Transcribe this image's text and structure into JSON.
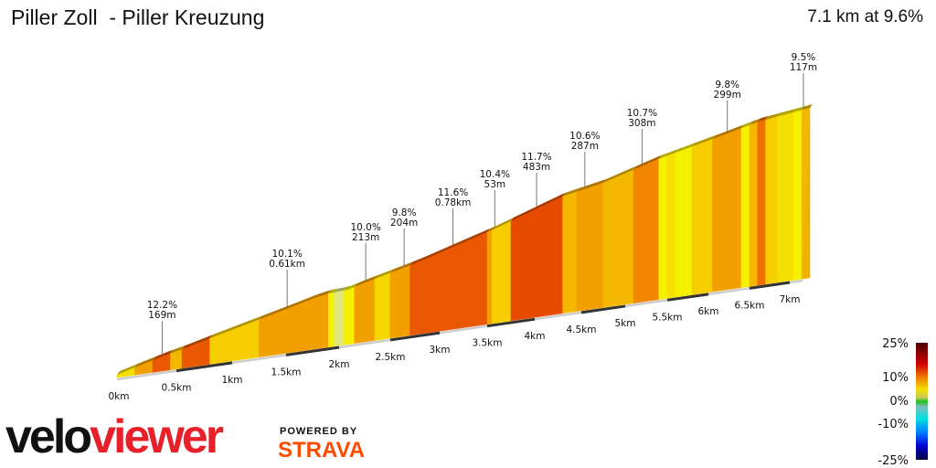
{
  "header": {
    "title": "Piller Zoll  - Piller Kreuzung",
    "summary": "7.1 km at 9.6%"
  },
  "branding": {
    "logo_part1": "velo",
    "logo_part2": "viewer",
    "powered_by": "POWERED BY",
    "strava": "STRAVA"
  },
  "chart_data": {
    "type": "area",
    "title": "Piller Zoll  - Piller Kreuzung",
    "xlabel": "",
    "ylabel": "",
    "x_ticks": [
      "0km",
      "0.5km",
      "1km",
      "1.5km",
      "2km",
      "2.5km",
      "3km",
      "3.5km",
      "4km",
      "4.5km",
      "5km",
      "5.5km",
      "6km",
      "6.5km",
      "7km"
    ],
    "segments": [
      {
        "from_km": 0,
        "to_km": 0.15,
        "grade": 6
      },
      {
        "from_km": 0.15,
        "to_km": 0.3,
        "grade": 9
      },
      {
        "from_km": 0.3,
        "to_km": 0.45,
        "grade": 12
      },
      {
        "from_km": 0.45,
        "to_km": 0.55,
        "grade": 8
      },
      {
        "from_km": 0.55,
        "to_km": 0.8,
        "grade": 12
      },
      {
        "from_km": 0.8,
        "to_km": 1.25,
        "grade": 7
      },
      {
        "from_km": 1.25,
        "to_km": 1.9,
        "grade": 9
      },
      {
        "from_km": 1.9,
        "to_km": 1.95,
        "grade": 5
      },
      {
        "from_km": 1.95,
        "to_km": 2.05,
        "grade": 3
      },
      {
        "from_km": 2.05,
        "to_km": 2.15,
        "grade": 5
      },
      {
        "from_km": 2.15,
        "to_km": 2.35,
        "grade": 9
      },
      {
        "from_km": 2.35,
        "to_km": 2.5,
        "grade": 6.5
      },
      {
        "from_km": 2.5,
        "to_km": 2.7,
        "grade": 9
      },
      {
        "from_km": 2.7,
        "to_km": 3.5,
        "grade": 12
      },
      {
        "from_km": 3.5,
        "to_km": 3.55,
        "grade": 9
      },
      {
        "from_km": 3.55,
        "to_km": 3.75,
        "grade": 7
      },
      {
        "from_km": 3.75,
        "to_km": 4.3,
        "grade": 12.5
      },
      {
        "from_km": 4.3,
        "to_km": 4.45,
        "grade": 8
      },
      {
        "from_km": 4.45,
        "to_km": 4.75,
        "grade": 9
      },
      {
        "from_km": 4.75,
        "to_km": 5.1,
        "grade": 8
      },
      {
        "from_km": 5.1,
        "to_km": 5.4,
        "grade": 10
      },
      {
        "from_km": 5.4,
        "to_km": 5.5,
        "grade": 5
      },
      {
        "from_km": 5.5,
        "to_km": 5.6,
        "grade": 6
      },
      {
        "from_km": 5.6,
        "to_km": 5.8,
        "grade": 5
      },
      {
        "from_km": 5.8,
        "to_km": 6.05,
        "grade": 7
      },
      {
        "from_km": 6.05,
        "to_km": 6.4,
        "grade": 9
      },
      {
        "from_km": 6.4,
        "to_km": 6.5,
        "grade": 5
      },
      {
        "from_km": 6.5,
        "to_km": 6.6,
        "grade": 8
      },
      {
        "from_km": 6.6,
        "to_km": 6.7,
        "grade": 11
      },
      {
        "from_km": 6.7,
        "to_km": 6.85,
        "grade": 7
      },
      {
        "from_km": 6.85,
        "to_km": 7.05,
        "grade": 6
      },
      {
        "from_km": 7.05,
        "to_km": 7.15,
        "grade": 5
      },
      {
        "from_km": 7.15,
        "to_km": 7.25,
        "grade": 8
      }
    ],
    "annotations": [
      {
        "km": 0.38,
        "grade": "12.2%",
        "length": "169m"
      },
      {
        "km": 1.51,
        "grade": "10.1%",
        "length": "0.61km"
      },
      {
        "km": 2.26,
        "grade": "10.0%",
        "length": "213m"
      },
      {
        "km": 2.64,
        "grade": "9.8%",
        "length": "204m"
      },
      {
        "km": 3.14,
        "grade": "11.6%",
        "length": "0.78km"
      },
      {
        "km": 3.58,
        "grade": "10.4%",
        "length": "53m"
      },
      {
        "km": 4.02,
        "grade": "11.7%",
        "length": "483m"
      },
      {
        "km": 4.54,
        "grade": "10.6%",
        "length": "287m"
      },
      {
        "km": 5.2,
        "grade": "10.7%",
        "length": "308m"
      },
      {
        "km": 6.23,
        "grade": "9.8%",
        "length": "299m"
      },
      {
        "km": 7.17,
        "grade": "9.5%",
        "length": "117m"
      }
    ],
    "legend": {
      "labels": [
        "25%",
        "10%",
        "0%",
        "-10%",
        "-25%"
      ],
      "placement": "bottom-right",
      "colors": [
        "#5a0000",
        "#d80000",
        "#f07000",
        "#f0e000",
        "#c8c860",
        "#20c020",
        "#80c0c0",
        "#00e0e0",
        "#0080ff",
        "#0000e0",
        "#000050"
      ]
    }
  }
}
